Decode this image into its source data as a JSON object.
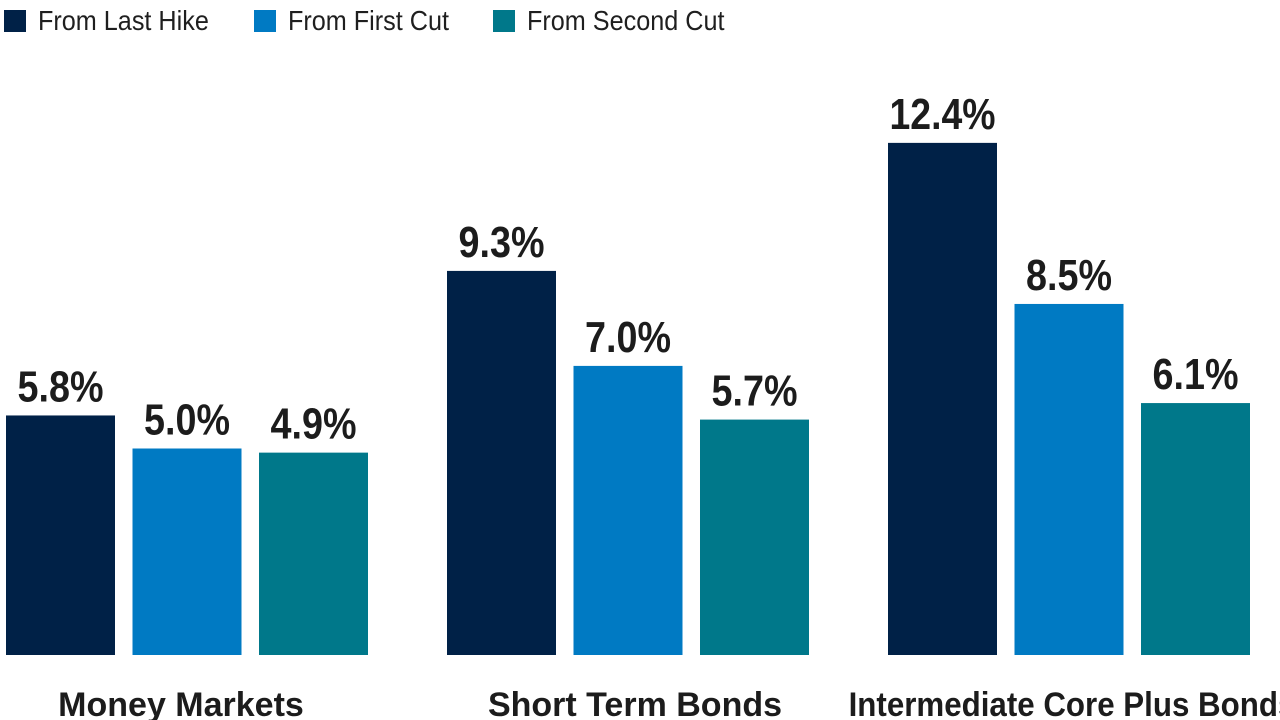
{
  "chart_data": {
    "type": "bar",
    "categories": [
      "Money Markets",
      "Short Term Bonds",
      "Intermediate Core Plus Bonds"
    ],
    "series": [
      {
        "name": "From Last Hike",
        "values": [
          5.8,
          9.3,
          12.4
        ],
        "labels": [
          "5.8%",
          "9.3%",
          "12.4%"
        ],
        "color": "#002147"
      },
      {
        "name": "From First Cut",
        "values": [
          5.0,
          7.0,
          8.5
        ],
        "labels": [
          "5.0%",
          "7.0%",
          "8.5%"
        ],
        "color": "#007AC3"
      },
      {
        "name": "From Second Cut",
        "values": [
          4.9,
          5.7,
          6.1
        ],
        "labels": [
          "4.9%",
          "5.7%",
          "6.1%"
        ],
        "color": "#00788A"
      }
    ],
    "ylim": [
      0,
      14
    ],
    "grid": false,
    "legend_position": "top-left"
  }
}
